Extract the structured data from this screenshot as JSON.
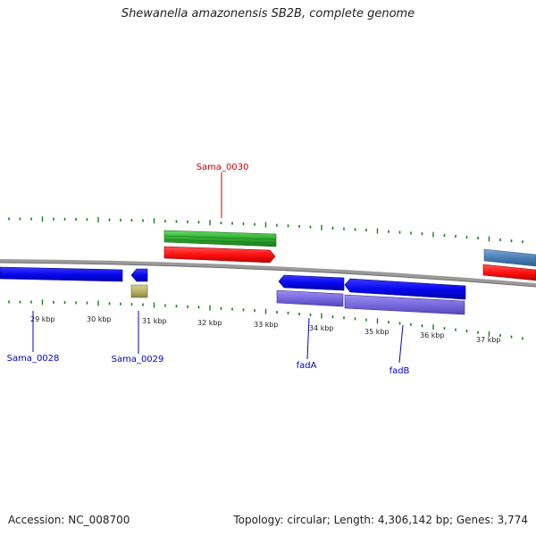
{
  "title": "Shewanella amazonensis SB2B, complete genome",
  "accession": "NC_008700",
  "accession_label": "Accession: NC_008700",
  "topology_label": "Topology: circular; Length: 4,306,142 bp; Genes: 3,774",
  "colors": {
    "backbone": "#8a8a8a",
    "tick": "#1f7a1f",
    "label_red": "#cc0000",
    "label_blue": "#0000cc",
    "green": "#33bb33",
    "red": "#ff1a1a",
    "blue": "#0a0ae6",
    "olive": "#b8b46a",
    "purple": "#7766dd",
    "steelblue": "#4a7fb5"
  },
  "ruler": {
    "unit": "kbp",
    "labels": [
      "29 kbp",
      "30 kbp",
      "31 kbp",
      "32 kbp",
      "33 kbp",
      "34 kbp",
      "35 kbp",
      "36 kbp",
      "37 kbp"
    ]
  },
  "genes": [
    {
      "id": "Sama_0028",
      "label": "Sama_0028",
      "color": "blue"
    },
    {
      "id": "Sama_0029",
      "label": "Sama_0029",
      "color": "blue"
    },
    {
      "id": "Sama_0030",
      "label": "Sama_0030",
      "color": "red"
    },
    {
      "id": "fadA",
      "label": "fadA",
      "color": "blue"
    },
    {
      "id": "fadB",
      "label": "fadB",
      "color": "blue"
    }
  ]
}
